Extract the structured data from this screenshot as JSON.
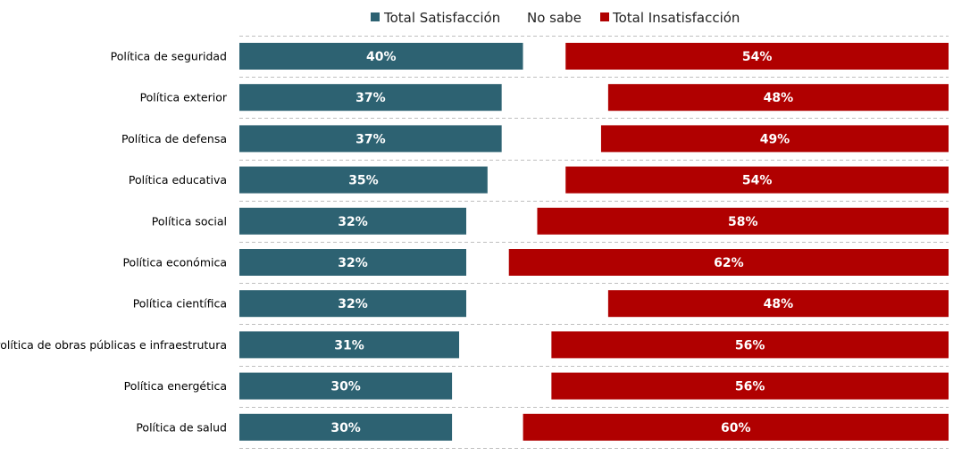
{
  "chart_data": {
    "type": "bar",
    "orientation": "horizontal",
    "title": "",
    "legend": {
      "placement": "top",
      "entries": [
        {
          "key": "satisfaction",
          "label": "Total Satisfacción",
          "color": "#2d6272"
        },
        {
          "key": "no_sabe",
          "label": "No sabe",
          "color": "#ffffff"
        },
        {
          "key": "dissatisfaction",
          "label": "Total Insatisfacción",
          "color": "#b00000"
        }
      ]
    },
    "categories": [
      "Política de seguridad",
      "Política exterior",
      "Política de defensa",
      "Política educativa",
      "Política social",
      "Política económica",
      "Política científica",
      "Política de obras públicas e infraestrutura",
      "Política energética",
      "Política de salud"
    ],
    "series": [
      {
        "name": "Total Satisfacción",
        "color": "#2d6272",
        "values": [
          40,
          37,
          37,
          35,
          32,
          32,
          32,
          31,
          30,
          30
        ],
        "labels": [
          "40%",
          "37%",
          "37%",
          "35%",
          "32%",
          "32%",
          "32%",
          "31%",
          "30%",
          "30%"
        ]
      },
      {
        "name": "No sabe",
        "color": "#ffffff",
        "values": [
          6,
          15,
          14,
          11,
          10,
          6,
          20,
          13,
          14,
          10
        ],
        "labels": []
      },
      {
        "name": "Total Insatisfacción",
        "color": "#b00000",
        "values": [
          54,
          48,
          49,
          54,
          58,
          62,
          48,
          56,
          56,
          60
        ],
        "labels": [
          "54%",
          "48%",
          "49%",
          "54%",
          "58%",
          "62%",
          "48%",
          "56%",
          "56%",
          "60%"
        ]
      }
    ],
    "xlim": [
      0,
      100
    ],
    "grid": false,
    "separators": "dashed"
  }
}
